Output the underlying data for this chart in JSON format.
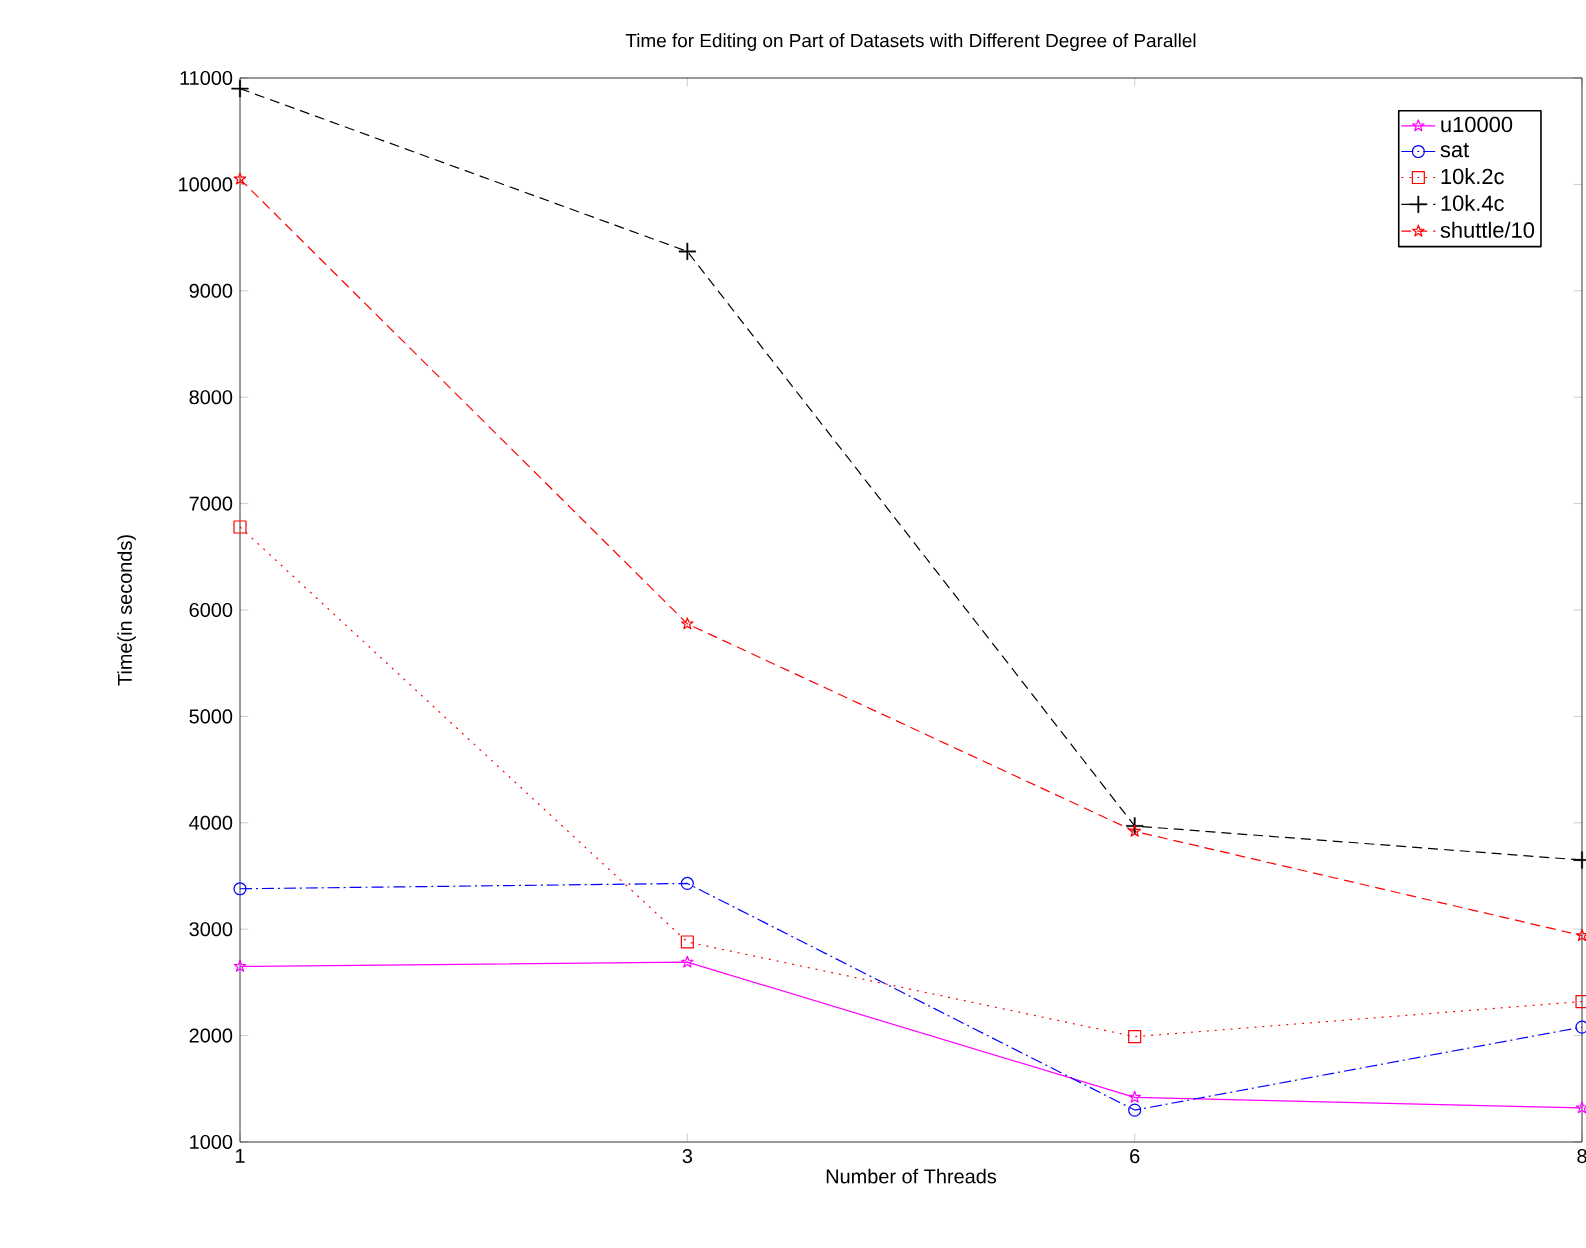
{
  "chart_data": {
    "type": "line",
    "title": "Time for Editing on Part of Datasets with Different Degree of Parallel",
    "xlabel": "Number of Threads",
    "ylabel": "Time(in seconds)",
    "categories": [
      "1",
      "3",
      "6",
      "8"
    ],
    "series": [
      {
        "name": "u10000",
        "color": "#ff00ff",
        "marker": "star",
        "line_style": "solid",
        "values": [
          2650,
          2690,
          1420,
          1320
        ]
      },
      {
        "name": "sat",
        "color": "#0000ff",
        "marker": "circle",
        "line_style": "dashdot",
        "values": [
          3380,
          3430,
          1300,
          2080
        ]
      },
      {
        "name": "10k.2c",
        "color": "#ff0000",
        "marker": "square",
        "line_style": "dotted",
        "values": [
          6780,
          2880,
          1990,
          2320
        ]
      },
      {
        "name": "10k.4c",
        "color": "#000000",
        "marker": "cross",
        "line_style": "dashed",
        "values": [
          10900,
          9370,
          3970,
          3650
        ]
      },
      {
        "name": "shuttle/10",
        "color": "#ff0000",
        "marker": "star",
        "line_style": "dashed",
        "values": [
          10050,
          5870,
          3920,
          2940
        ]
      }
    ],
    "ylim": [
      1000,
      11000
    ],
    "yticks": [
      1000,
      2000,
      3000,
      4000,
      5000,
      6000,
      7000,
      8000,
      9000,
      10000,
      11000
    ],
    "grid": false,
    "legend": "top right"
  }
}
